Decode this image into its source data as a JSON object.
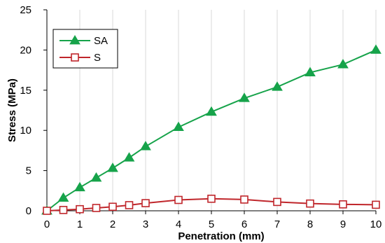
{
  "chart_data": {
    "type": "line",
    "xlabel": "Penetration (mm)",
    "ylabel": "Stress (MPa)",
    "xlim": [
      0,
      10
    ],
    "ylim": [
      0,
      25
    ],
    "x_ticks": [
      0,
      1,
      2,
      3,
      4,
      5,
      6,
      7,
      8,
      9,
      10
    ],
    "y_ticks": [
      0,
      5,
      10,
      15,
      20,
      25
    ],
    "grid": "vertical",
    "legend_position": "top-left",
    "series": [
      {
        "name": "SA",
        "color": "#16a34a",
        "marker": "filled-triangle",
        "x": [
          0,
          0.5,
          1,
          1.5,
          2,
          2.5,
          3,
          4,
          5,
          6,
          7,
          8,
          9,
          10
        ],
        "values": [
          0,
          1.6,
          2.9,
          4.1,
          5.3,
          6.6,
          8.0,
          10.4,
          12.3,
          14.0,
          15.4,
          17.2,
          18.2,
          20.0
        ]
      },
      {
        "name": "S",
        "color": "#c0262b",
        "marker": "open-square",
        "x": [
          0,
          0.5,
          1,
          1.5,
          2,
          2.5,
          3,
          4,
          5,
          6,
          7,
          8,
          9,
          10
        ],
        "values": [
          0,
          0.1,
          0.2,
          0.35,
          0.5,
          0.7,
          0.95,
          1.35,
          1.5,
          1.4,
          1.1,
          0.9,
          0.8,
          0.75
        ]
      }
    ]
  }
}
